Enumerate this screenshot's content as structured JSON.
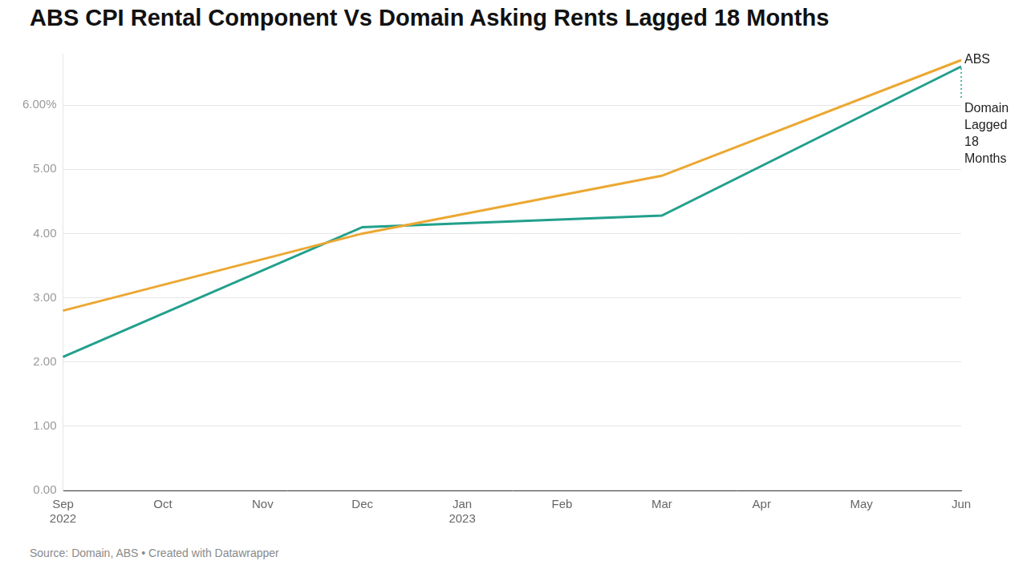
{
  "chart_data": {
    "type": "line",
    "title": "ABS CPI Rental Component Vs Domain Asking Rents Lagged 18 Months",
    "source": "Source: Domain, ABS • Created with Datawrapper",
    "categories": [
      "Sep 2022",
      "Oct",
      "Nov",
      "Dec",
      "Jan 2023",
      "Feb",
      "Mar",
      "Apr",
      "May",
      "Jun"
    ],
    "series": [
      {
        "name": "ABS",
        "color": "#eba832",
        "values": [
          2.8,
          null,
          null,
          4.0,
          null,
          null,
          4.9,
          null,
          null,
          6.7
        ]
      },
      {
        "name": "Domain Lagged 18 Months",
        "color": "#22a08c",
        "values": [
          2.08,
          null,
          null,
          4.1,
          null,
          null,
          4.28,
          null,
          null,
          6.6
        ]
      }
    ],
    "ylim": [
      0,
      6.8
    ],
    "yticks": [
      {
        "value": 0,
        "label": "0.00"
      },
      {
        "value": 1,
        "label": "1.00"
      },
      {
        "value": 2,
        "label": "2.00"
      },
      {
        "value": 3,
        "label": "3.00"
      },
      {
        "value": 4,
        "label": "4.00"
      },
      {
        "value": 5,
        "label": "5.00"
      },
      {
        "value": 6,
        "label": "6.00%"
      }
    ],
    "grid": true
  }
}
